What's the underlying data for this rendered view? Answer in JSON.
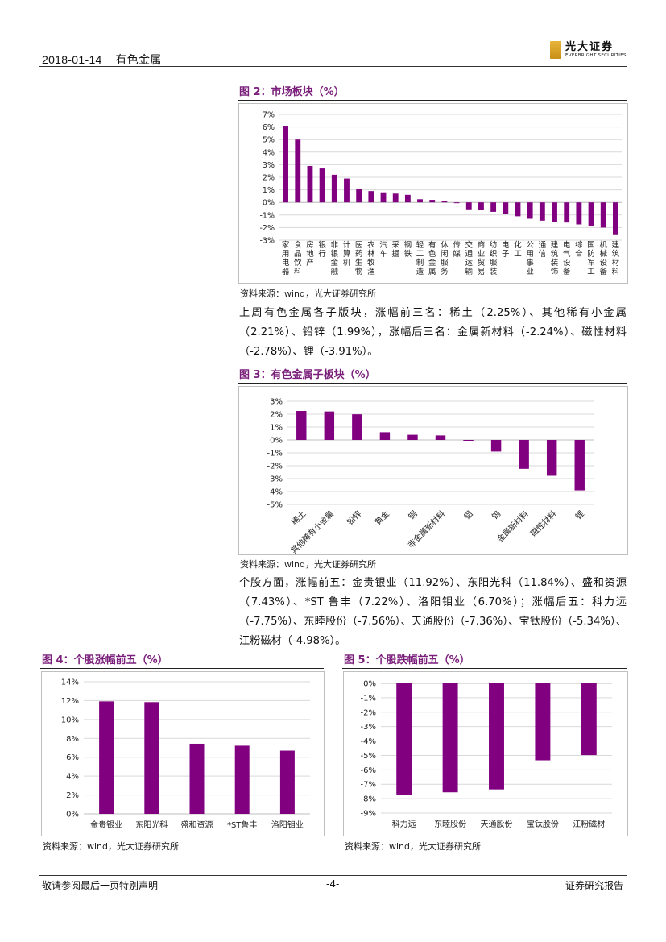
{
  "header": {
    "date": "2018-01-14",
    "sector": "有色金属",
    "logo_cn": "光大证券",
    "logo_en": "EVERBRIGHT SECURITIES"
  },
  "fig2": {
    "title": "图 2：市场板块（%）",
    "source": "资料来源：wind，光大证券研究所"
  },
  "para1": "上周有色金属各子版块，涨幅前三名：稀土（2.25%）、其他稀有小金属（2.21%）、铅锌（1.99%），涨幅后三名：金属新材料（-2.24%）、磁性材料（-2.78%）、锂（-3.91%）。",
  "fig3": {
    "title": "图 3：有色金属子板块（%）",
    "source": "资料来源：wind，光大证券研究所"
  },
  "para2": "个股方面，涨幅前五：金贵银业（11.92%）、东阳光科（11.84%）、盛和资源（7.43%）、*ST 鲁丰（7.22%）、洛阳钼业（6.70%）；涨幅后五：科力远（-7.75%）、东睦股份（-7.56%）、天通股份（-7.36%）、宝钛股份（-5.34%）、江粉磁材（-4.98%）。",
  "fig4": {
    "title": "图 4：个股涨幅前五（%）",
    "source": "资料来源：wind，光大证券研究所"
  },
  "fig5": {
    "title": "图 5：个股跌幅前五（%）",
    "source": "资料来源：wind，光大证券研究所"
  },
  "footer": {
    "left": "敬请参阅最后一页特别声明",
    "center": "-4-",
    "right": "证券研究报告"
  },
  "colors": {
    "bar": "#800080",
    "title": "#7a1f7a"
  },
  "chart_data": [
    {
      "id": "fig2",
      "type": "bar",
      "categories": [
        "家用电器",
        "食品饮料",
        "房地产",
        "银行",
        "非银金融",
        "计算机",
        "医药生物",
        "农林牧渔",
        "汽车",
        "采掘",
        "钢铁",
        "轻工制造",
        "有色金属",
        "休闲服务",
        "传媒",
        "交通运输",
        "商业贸易",
        "纺织服装",
        "电子",
        "化工",
        "公用事业",
        "通信",
        "建筑装饰",
        "电气设备",
        "综合",
        "国防军工",
        "机械设备",
        "建筑材料"
      ],
      "values": [
        6.1,
        5.0,
        2.9,
        2.7,
        2.2,
        1.9,
        1.1,
        0.9,
        0.8,
        0.7,
        0.6,
        0.25,
        0.2,
        0.1,
        -0.05,
        -0.55,
        -0.6,
        -0.75,
        -0.9,
        -1.1,
        -1.3,
        -1.45,
        -1.55,
        -1.6,
        -1.75,
        -1.85,
        -2.0,
        -2.6
      ],
      "ylim": [
        -3,
        7
      ],
      "yticks": [
        "7%",
        "6%",
        "5%",
        "4%",
        "3%",
        "2%",
        "1%",
        "0%",
        "-1%",
        "-2%",
        "-3%"
      ]
    },
    {
      "id": "fig3",
      "type": "bar",
      "categories": [
        "稀土",
        "其他稀有小金属",
        "铅锌",
        "黄金",
        "铜",
        "非金属新材料",
        "铝",
        "钨",
        "金属新材料",
        "磁性材料",
        "锂"
      ],
      "values": [
        2.25,
        2.21,
        1.99,
        0.6,
        0.4,
        0.35,
        -0.05,
        -0.9,
        -2.24,
        -2.78,
        -3.91
      ],
      "ylim": [
        -5,
        3
      ],
      "yticks": [
        "3%",
        "2%",
        "1%",
        "0%",
        "-1%",
        "-2%",
        "-3%",
        "-4%",
        "-5%"
      ]
    },
    {
      "id": "fig4",
      "type": "bar",
      "categories": [
        "金贵银业",
        "东阳光科",
        "盛和资源",
        "*ST鲁丰",
        "洛阳钼业"
      ],
      "values": [
        11.92,
        11.84,
        7.43,
        7.22,
        6.7
      ],
      "ylim": [
        0,
        14
      ],
      "yticks": [
        "14%",
        "12%",
        "10%",
        "8%",
        "6%",
        "4%",
        "2%",
        "0%"
      ]
    },
    {
      "id": "fig5",
      "type": "bar",
      "categories": [
        "科力远",
        "东睦股份",
        "天通股份",
        "宝钛股份",
        "江粉磁材"
      ],
      "values": [
        -7.75,
        -7.56,
        -7.36,
        -5.34,
        -4.98
      ],
      "ylim": [
        -9,
        0
      ],
      "yticks": [
        "0%",
        "-1%",
        "-2%",
        "-3%",
        "-4%",
        "-5%",
        "-6%",
        "-7%",
        "-8%",
        "-9%"
      ]
    }
  ]
}
